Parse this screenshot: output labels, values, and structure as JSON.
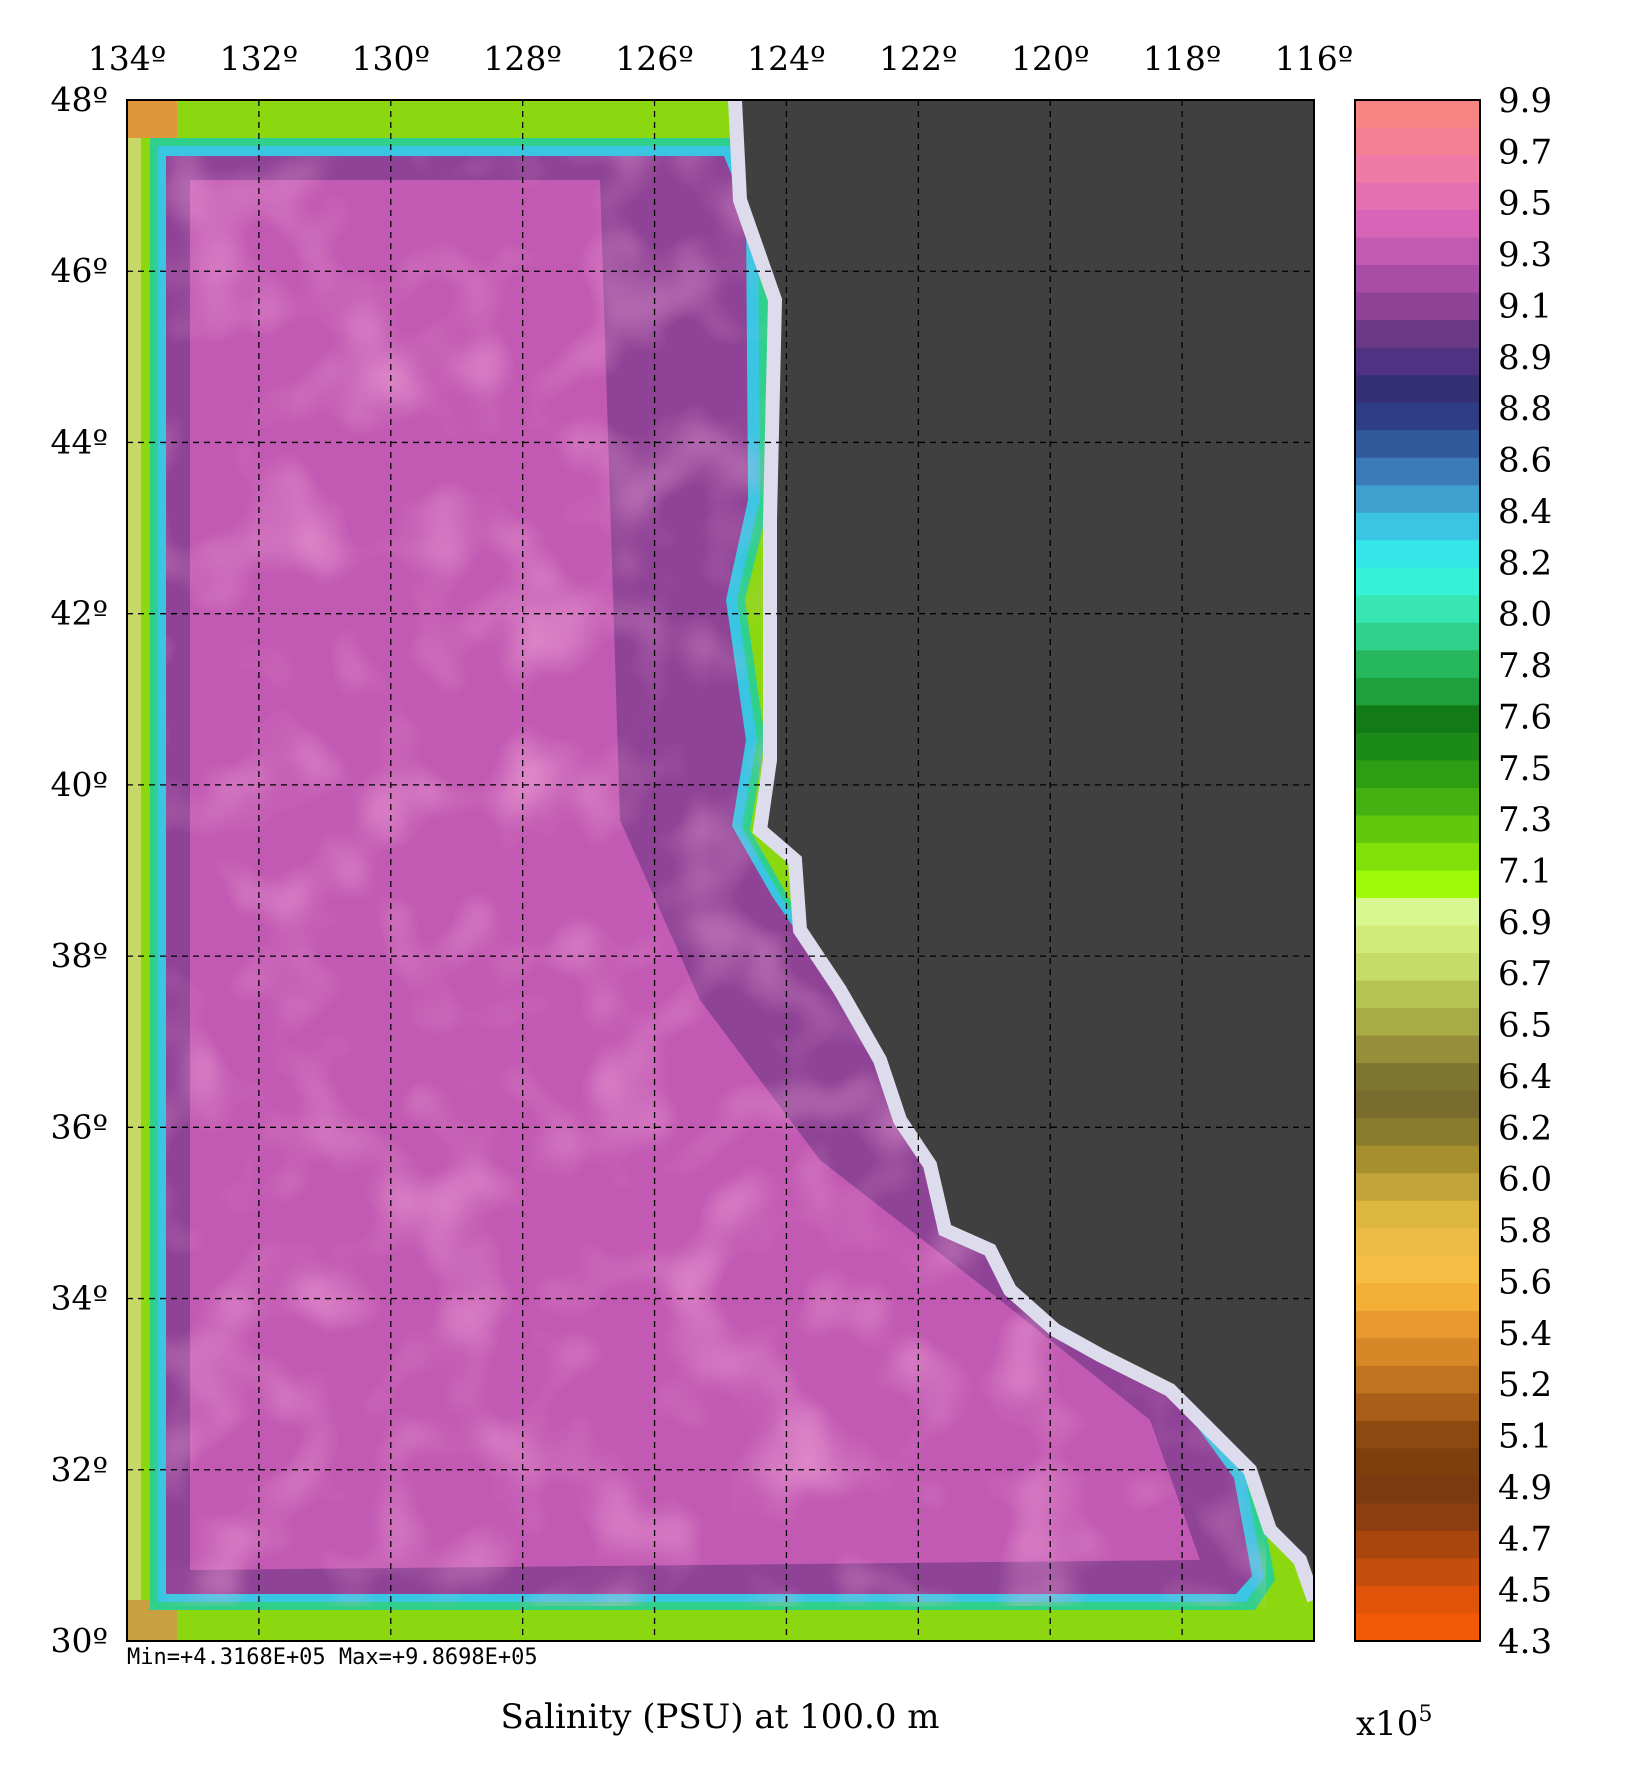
{
  "chart_data": {
    "type": "heatmap",
    "title": "Salinity (PSU) at 100.0 m",
    "stats_text": "Min=+4.3168E+05   Max=+9.8698E+05",
    "min": 431680,
    "max": 986980,
    "colorbar_multiplier": "x10",
    "colorbar_multiplier_exp": "5",
    "x_ticks": [
      "134º",
      "132º",
      "130º",
      "128º",
      "126º",
      "124º",
      "122º",
      "120º",
      "118º",
      "116º"
    ],
    "x_values": [
      -134,
      -132,
      -130,
      -128,
      -126,
      -124,
      -122,
      -120,
      -118,
      -116
    ],
    "y_ticks": [
      "48º",
      "46º",
      "44º",
      "42º",
      "40º",
      "38º",
      "36º",
      "34º",
      "32º",
      "30º"
    ],
    "y_values": [
      48,
      46,
      44,
      42,
      40,
      38,
      36,
      34,
      32,
      30
    ],
    "xlim": [
      -134,
      -116
    ],
    "ylim": [
      30,
      48
    ],
    "grid": true,
    "colorbar_ticks": [
      "9.9",
      "9.7",
      "9.5",
      "9.3",
      "9.1",
      "8.9",
      "8.8",
      "8.6",
      "8.4",
      "8.2",
      "8.0",
      "7.8",
      "7.6",
      "7.5",
      "7.3",
      "7.1",
      "6.9",
      "6.7",
      "6.5",
      "6.4",
      "6.2",
      "6.0",
      "5.8",
      "5.6",
      "5.4",
      "5.2",
      "5.1",
      "4.9",
      "4.7",
      "4.5",
      "4.3"
    ],
    "colorbar_colors": [
      "#f78482",
      "#f47f92",
      "#ee7aa5",
      "#e46fb3",
      "#d764b6",
      "#c25ab3",
      "#a84ca6",
      "#8e4396",
      "#6b3a86",
      "#4f3382",
      "#353074",
      "#2f3d87",
      "#315a9c",
      "#3a7ab6",
      "#3fa0d0",
      "#3ac6e2",
      "#34e6e8",
      "#38f2d8",
      "#37e6b2",
      "#2fd08c",
      "#27b85e",
      "#1ea03c",
      "#137a18",
      "#1c8a16",
      "#2d9d14",
      "#44b012",
      "#62c80e",
      "#82e00a",
      "#9efa08",
      "#d8f790",
      "#d1ea78",
      "#c6dc68",
      "#b6c454",
      "#a8ac46",
      "#968e3a",
      "#7e7630",
      "#7a6c2e",
      "#8a7c2c",
      "#a6902e",
      "#c2a43a",
      "#dcb63e",
      "#ecbc46",
      "#f6be44",
      "#f4b036",
      "#e89a30",
      "#d68828",
      "#c07420",
      "#a85e18",
      "#8c4a10",
      "#7e3f0e",
      "#7c3a10",
      "#8c3e10",
      "#a8460e",
      "#c44e0c",
      "#e0540a",
      "#f25a08"
    ],
    "land_color": "#404040",
    "coast_color": "#dcdcec",
    "field_legend": "Salinity"
  }
}
